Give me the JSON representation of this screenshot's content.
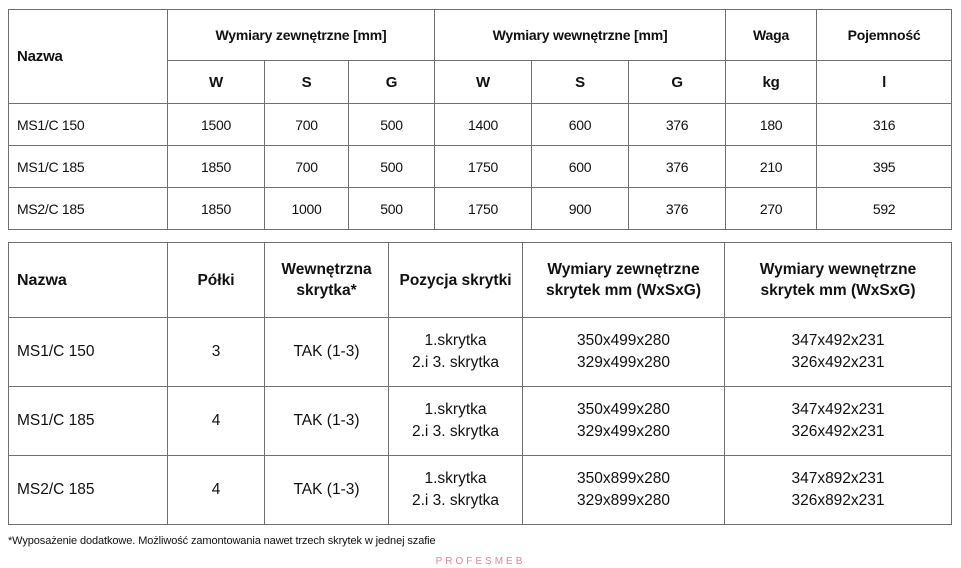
{
  "table1": {
    "col_name": "Nazwa",
    "group_outer": "Wymiary zewnętrzne [mm]",
    "group_inner": "Wymiary wewnętrzne [mm]",
    "col_weight": "Waga",
    "col_capacity": "Pojemność",
    "sub_headers": [
      "W",
      "S",
      "G",
      "W",
      "S",
      "G",
      "kg",
      "l"
    ],
    "rows": [
      [
        "MS1/C 150",
        "1500",
        "700",
        "500",
        "1400",
        "600",
        "376",
        "180",
        "316"
      ],
      [
        "MS1/C 185",
        "1850",
        "700",
        "500",
        "1750",
        "600",
        "376",
        "210",
        "395"
      ],
      [
        "MS2/C 185",
        "1850",
        "1000",
        "500",
        "1750",
        "900",
        "376",
        "270",
        "592"
      ]
    ]
  },
  "table2": {
    "headers": {
      "name": "Nazwa",
      "shelves": "Półki",
      "inner_box": [
        "Wewnętrzna",
        "skrytka*"
      ],
      "box_position": "Pozycja skrytki",
      "outer_dims": [
        "Wymiary zewnętrzne",
        "skrytek mm (WxSxG)"
      ],
      "inner_dims": [
        "Wymiary wewnętrzne",
        "skrytek mm (WxSxG)"
      ]
    },
    "rows": [
      {
        "name": "MS1/C 150",
        "shelves": "3",
        "inner_box": "TAK (1-3)",
        "position": [
          "1.skrytka",
          "2.i 3. skrytka"
        ],
        "outer": [
          "350x499x280",
          "329x499x280"
        ],
        "inner": [
          "347x492x231",
          "326x492x231"
        ]
      },
      {
        "name": "MS1/C 185",
        "shelves": "4",
        "inner_box": "TAK (1-3)",
        "position": [
          "1.skrytka",
          "2.i 3. skrytka"
        ],
        "outer": [
          "350x499x280",
          "329x499x280"
        ],
        "inner": [
          "347x492x231",
          "326x492x231"
        ]
      },
      {
        "name": "MS2/C 185",
        "shelves": "4",
        "inner_box": "TAK (1-3)",
        "position": [
          "1.skrytka",
          "2.i 3. skrytka"
        ],
        "outer": [
          "350x899x280",
          "329x899x280"
        ],
        "inner": [
          "347x892x231",
          "326x892x231"
        ]
      }
    ]
  },
  "footnote": "*Wyposażenie dodatkowe. Możliwość zamontowania nawet trzech skrytek w jednej szafie",
  "watermark": "PROFESMEB"
}
